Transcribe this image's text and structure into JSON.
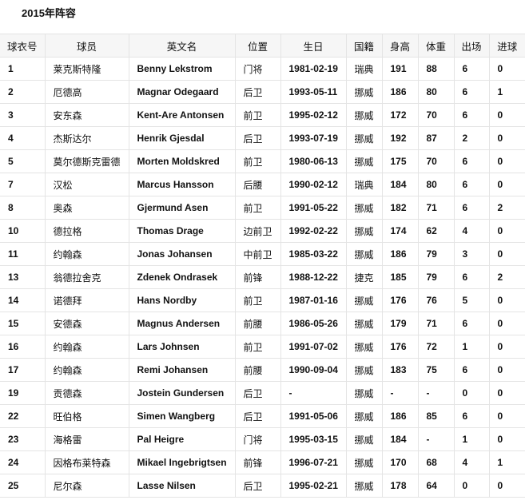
{
  "title": "2015年阵容",
  "headers": [
    "球衣号",
    "球员",
    "英文名",
    "位置",
    "生日",
    "国籍",
    "身高",
    "体重",
    "出场",
    "进球"
  ],
  "rows": [
    [
      "1",
      "莱克斯特隆",
      "Benny Lekstrom",
      "门将",
      "1981-02-19",
      "瑞典",
      "191",
      "88",
      "6",
      "0"
    ],
    [
      "2",
      "厄德高",
      "Magnar Odegaard",
      "后卫",
      "1993-05-11",
      "挪威",
      "186",
      "80",
      "6",
      "1"
    ],
    [
      "3",
      "安东森",
      "Kent-Are Antonsen",
      "前卫",
      "1995-02-12",
      "挪威",
      "172",
      "70",
      "6",
      "0"
    ],
    [
      "4",
      "杰斯达尔",
      "Henrik Gjesdal",
      "后卫",
      "1993-07-19",
      "挪威",
      "192",
      "87",
      "2",
      "0"
    ],
    [
      "5",
      "莫尔德斯克雷德",
      "Morten Moldskred",
      "前卫",
      "1980-06-13",
      "挪威",
      "175",
      "70",
      "6",
      "0"
    ],
    [
      "7",
      "汉松",
      "Marcus Hansson",
      "后腰",
      "1990-02-12",
      "瑞典",
      "184",
      "80",
      "6",
      "0"
    ],
    [
      "8",
      "奥森",
      "Gjermund Asen",
      "前卫",
      "1991-05-22",
      "挪威",
      "182",
      "71",
      "6",
      "2"
    ],
    [
      "10",
      "德拉格",
      "Thomas Drage",
      "边前卫",
      "1992-02-22",
      "挪威",
      "174",
      "62",
      "4",
      "0"
    ],
    [
      "11",
      "约翰森",
      "Jonas Johansen",
      "中前卫",
      "1985-03-22",
      "挪威",
      "186",
      "79",
      "3",
      "0"
    ],
    [
      "13",
      "翁德拉舍克",
      "Zdenek Ondrasek",
      "前锋",
      "1988-12-22",
      "捷克",
      "185",
      "79",
      "6",
      "2"
    ],
    [
      "14",
      "诺德拜",
      "Hans Nordby",
      "前卫",
      "1987-01-16",
      "挪威",
      "176",
      "76",
      "5",
      "0"
    ],
    [
      "15",
      "安德森",
      "Magnus Andersen",
      "前腰",
      "1986-05-26",
      "挪威",
      "179",
      "71",
      "6",
      "0"
    ],
    [
      "16",
      "约翰森",
      "Lars Johnsen",
      "前卫",
      "1991-07-02",
      "挪威",
      "176",
      "72",
      "1",
      "0"
    ],
    [
      "17",
      "约翰森",
      "Remi Johansen",
      "前腰",
      "1990-09-04",
      "挪威",
      "183",
      "75",
      "6",
      "0"
    ],
    [
      "19",
      "贡德森",
      "Jostein Gundersen",
      "后卫",
      "-",
      "挪威",
      "-",
      "-",
      "0",
      "0"
    ],
    [
      "22",
      "旺伯格",
      "Simen Wangberg",
      "后卫",
      "1991-05-06",
      "挪威",
      "186",
      "85",
      "6",
      "0"
    ],
    [
      "23",
      "海格雷",
      "Pal Heigre",
      "门将",
      "1995-03-15",
      "挪威",
      "184",
      "-",
      "1",
      "0"
    ],
    [
      "24",
      "因格布莱特森",
      "Mikael Ingebrigtsen",
      "前锋",
      "1996-07-21",
      "挪威",
      "170",
      "68",
      "4",
      "1"
    ],
    [
      "25",
      "尼尔森",
      "Lasse Nilsen",
      "后卫",
      "1995-02-21",
      "挪威",
      "178",
      "64",
      "0",
      "0"
    ]
  ]
}
